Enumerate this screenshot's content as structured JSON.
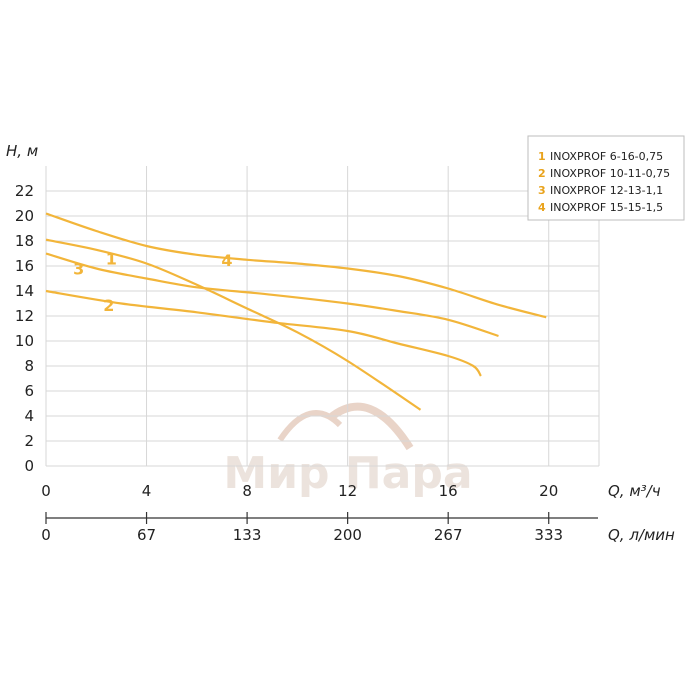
{
  "chart_data": {
    "type": "line",
    "ylabel": "H, м",
    "xlabel": "Q, м³/ч",
    "xlabel2": "Q, л/мин",
    "xlim": [
      0,
      22
    ],
    "ylim": [
      0,
      24
    ],
    "x_ticks": [
      "0",
      "4",
      "8",
      "12",
      "16",
      "20"
    ],
    "x_tick_values": [
      0,
      4,
      8,
      12,
      16,
      20
    ],
    "x2_ticks": [
      "0",
      "67",
      "133",
      "200",
      "267",
      "333"
    ],
    "y_ticks": [
      "0",
      "2",
      "4",
      "6",
      "8",
      "10",
      "12",
      "14",
      "16",
      "18",
      "20",
      "22"
    ],
    "y_tick_values": [
      0,
      2,
      4,
      6,
      8,
      10,
      12,
      14,
      16,
      18,
      20,
      22
    ],
    "grid": true,
    "legend_position": "top-right",
    "series": [
      {
        "id": "1",
        "name": "INOXPROF 6-16-0,75",
        "points": [
          [
            0,
            18.1
          ],
          [
            2,
            17.3
          ],
          [
            4,
            16.2
          ],
          [
            6,
            14.5
          ],
          [
            8,
            12.6
          ],
          [
            10,
            10.7
          ],
          [
            12,
            8.4
          ],
          [
            14.9,
            4.5
          ]
        ],
        "label_at": [
          2.6,
          16.6
        ]
      },
      {
        "id": "2",
        "name": "INOXPROF 10-11-0,75",
        "points": [
          [
            0,
            14.0
          ],
          [
            3,
            13.0
          ],
          [
            6,
            12.3
          ],
          [
            9,
            11.5
          ],
          [
            12,
            10.8
          ],
          [
            14,
            9.8
          ],
          [
            16,
            8.8
          ],
          [
            17,
            8.0
          ],
          [
            17.3,
            7.2
          ]
        ],
        "label_at": [
          2.5,
          12.9
        ]
      },
      {
        "id": "3",
        "name": "INOXPROF 12-13-1,1",
        "points": [
          [
            0,
            17.0
          ],
          [
            2,
            15.8
          ],
          [
            4,
            15.0
          ],
          [
            6,
            14.3
          ],
          [
            9,
            13.7
          ],
          [
            12,
            13.0
          ],
          [
            14,
            12.4
          ],
          [
            16,
            11.7
          ],
          [
            18,
            10.4
          ]
        ],
        "label_at": [
          1.3,
          15.8
        ]
      },
      {
        "id": "4",
        "name": "INOXPROF 15-15-1,5",
        "points": [
          [
            0,
            20.2
          ],
          [
            2,
            18.8
          ],
          [
            4,
            17.6
          ],
          [
            6,
            16.9
          ],
          [
            8,
            16.5
          ],
          [
            10,
            16.2
          ],
          [
            12,
            15.8
          ],
          [
            14,
            15.2
          ],
          [
            16,
            14.2
          ],
          [
            18,
            12.9
          ],
          [
            19.9,
            11.9
          ]
        ],
        "label_at": [
          7.2,
          16.5
        ]
      }
    ]
  },
  "watermark": {
    "text": "Мир Пара"
  },
  "colors": {
    "curve": "#f2b53a",
    "legend_number": "#e9a31c",
    "grid": "#d7d7d7",
    "watermark": "#ece3dd"
  }
}
